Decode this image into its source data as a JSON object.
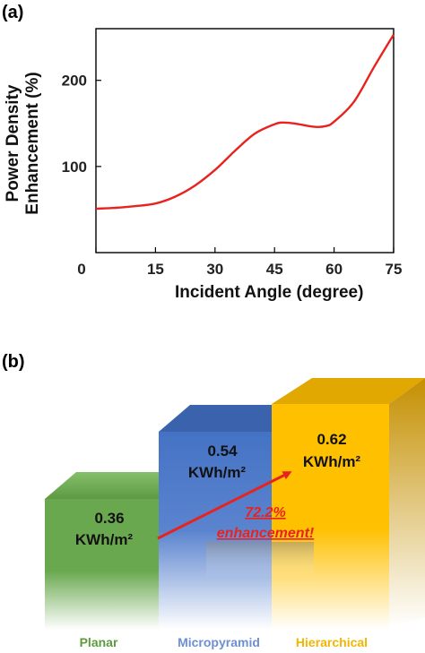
{
  "panel_a": {
    "label": "(a)"
  },
  "panel_b": {
    "label": "(b)",
    "annotation_percent": "72.2%",
    "annotation_text": "enhancement!"
  },
  "chart_data": [
    {
      "type": "line",
      "ylabel_line1": "Power Density",
      "ylabel_line2": "Enhancement (%)",
      "xlabel": "Incident Angle (degree)",
      "xlim": [
        0,
        75
      ],
      "ylim": [
        0,
        260
      ],
      "xticks": [
        0,
        15,
        30,
        45,
        60,
        75
      ],
      "yticks": [
        100,
        200
      ],
      "grid": false,
      "series": [
        {
          "color": "#e8231f",
          "x": [
            0,
            5,
            10,
            15,
            20,
            25,
            30,
            35,
            40,
            45,
            47,
            50,
            55,
            58,
            60,
            65,
            70,
            75
          ],
          "y": [
            51,
            52,
            54,
            57,
            65,
            78,
            96,
            118,
            138,
            149,
            151,
            150,
            146,
            147,
            152,
            175,
            215,
            253
          ]
        }
      ]
    },
    {
      "type": "bar",
      "categories": [
        "Planar",
        "Micropyramid",
        "Hierarchical"
      ],
      "values": [
        0.36,
        0.54,
        0.62
      ],
      "value_labels": [
        "0.36",
        "0.54",
        "0.62"
      ],
      "unit_labels": [
        "KWh/m²",
        "KWh/m²",
        "KWh/m²"
      ],
      "colors": [
        "#6aa84f",
        "#4472c4",
        "#ffc000"
      ],
      "label_colors": [
        "#5b9b3e",
        "#6d8fd4",
        "#f2b600"
      ]
    }
  ]
}
